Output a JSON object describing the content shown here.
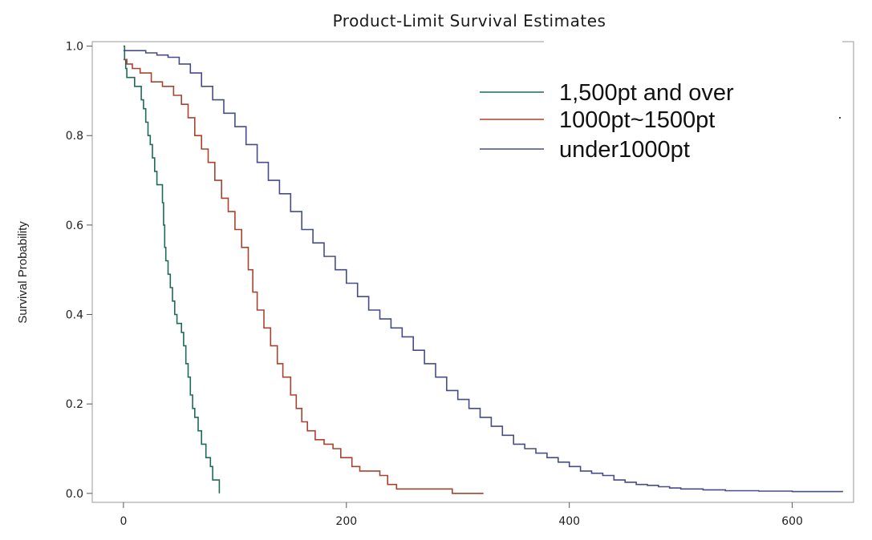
{
  "chart_data": {
    "type": "line",
    "step": true,
    "title": "Product-Limit Survival Estimates",
    "xlabel": "",
    "ylabel": "Survival Probability",
    "xlim": [
      -28,
      655
    ],
    "ylim": [
      -0.02,
      1.01
    ],
    "x_ticks": [
      0,
      200,
      400,
      600
    ],
    "y_ticks": [
      0.0,
      0.2,
      0.4,
      0.6,
      0.8,
      1.0
    ],
    "x_tick_labels": [
      "0",
      "200",
      "400",
      "600"
    ],
    "y_tick_labels": [
      "0.0",
      "0.2",
      "0.4",
      "0.6",
      "0.8",
      "1.0"
    ],
    "grid": false,
    "legend_position": "top-right",
    "series": [
      {
        "name": "1,500pt and over",
        "color": "#1e6b5a",
        "points": [
          [
            0,
            1.0
          ],
          [
            1,
            0.97
          ],
          [
            2,
            0.95
          ],
          [
            3,
            0.93
          ],
          [
            9,
            0.93
          ],
          [
            10,
            0.91
          ],
          [
            15,
            0.91
          ],
          [
            16,
            0.88
          ],
          [
            18,
            0.86
          ],
          [
            20,
            0.83
          ],
          [
            22,
            0.8
          ],
          [
            24,
            0.78
          ],
          [
            26,
            0.75
          ],
          [
            28,
            0.72
          ],
          [
            30,
            0.69
          ],
          [
            34,
            0.69
          ],
          [
            35,
            0.65
          ],
          [
            36,
            0.6
          ],
          [
            37,
            0.55
          ],
          [
            38,
            0.52
          ],
          [
            40,
            0.49
          ],
          [
            42,
            0.46
          ],
          [
            44,
            0.43
          ],
          [
            46,
            0.4
          ],
          [
            48,
            0.38
          ],
          [
            52,
            0.36
          ],
          [
            54,
            0.33
          ],
          [
            56,
            0.29
          ],
          [
            58,
            0.26
          ],
          [
            60,
            0.22
          ],
          [
            62,
            0.19
          ],
          [
            64,
            0.17
          ],
          [
            67,
            0.14
          ],
          [
            70,
            0.11
          ],
          [
            74,
            0.08
          ],
          [
            78,
            0.06
          ],
          [
            80,
            0.03
          ],
          [
            85,
            0.03
          ],
          [
            86,
            0.0
          ]
        ]
      },
      {
        "name": "1000pt~1500pt",
        "color": "#a8432f",
        "points": [
          [
            0,
            0.97
          ],
          [
            3,
            0.96
          ],
          [
            8,
            0.95
          ],
          [
            15,
            0.94
          ],
          [
            25,
            0.92
          ],
          [
            35,
            0.91
          ],
          [
            45,
            0.89
          ],
          [
            52,
            0.87
          ],
          [
            58,
            0.84
          ],
          [
            64,
            0.8
          ],
          [
            70,
            0.77
          ],
          [
            76,
            0.74
          ],
          [
            82,
            0.7
          ],
          [
            88,
            0.66
          ],
          [
            94,
            0.63
          ],
          [
            100,
            0.59
          ],
          [
            106,
            0.55
          ],
          [
            112,
            0.5
          ],
          [
            116,
            0.45
          ],
          [
            120,
            0.41
          ],
          [
            126,
            0.37
          ],
          [
            132,
            0.33
          ],
          [
            138,
            0.29
          ],
          [
            143,
            0.26
          ],
          [
            150,
            0.22
          ],
          [
            155,
            0.19
          ],
          [
            160,
            0.16
          ],
          [
            165,
            0.14
          ],
          [
            172,
            0.12
          ],
          [
            180,
            0.11
          ],
          [
            188,
            0.1
          ],
          [
            195,
            0.08
          ],
          [
            205,
            0.06
          ],
          [
            212,
            0.05
          ],
          [
            220,
            0.05
          ],
          [
            230,
            0.04
          ],
          [
            237,
            0.02
          ],
          [
            245,
            0.01
          ],
          [
            270,
            0.01
          ],
          [
            285,
            0.01
          ],
          [
            295,
            0.0
          ],
          [
            323,
            0.0
          ]
        ]
      },
      {
        "name": "under1000pt",
        "color": "#464c88",
        "points": [
          [
            0,
            0.99
          ],
          [
            10,
            0.99
          ],
          [
            20,
            0.985
          ],
          [
            30,
            0.98
          ],
          [
            40,
            0.975
          ],
          [
            50,
            0.96
          ],
          [
            60,
            0.94
          ],
          [
            70,
            0.91
          ],
          [
            80,
            0.88
          ],
          [
            90,
            0.85
          ],
          [
            100,
            0.82
          ],
          [
            110,
            0.78
          ],
          [
            120,
            0.74
          ],
          [
            130,
            0.7
          ],
          [
            140,
            0.67
          ],
          [
            150,
            0.63
          ],
          [
            160,
            0.59
          ],
          [
            170,
            0.56
          ],
          [
            180,
            0.53
          ],
          [
            190,
            0.5
          ],
          [
            200,
            0.47
          ],
          [
            210,
            0.44
          ],
          [
            220,
            0.41
          ],
          [
            230,
            0.39
          ],
          [
            240,
            0.37
          ],
          [
            250,
            0.35
          ],
          [
            260,
            0.32
          ],
          [
            270,
            0.29
          ],
          [
            280,
            0.26
          ],
          [
            290,
            0.23
          ],
          [
            300,
            0.21
          ],
          [
            310,
            0.19
          ],
          [
            320,
            0.17
          ],
          [
            330,
            0.15
          ],
          [
            340,
            0.13
          ],
          [
            350,
            0.11
          ],
          [
            360,
            0.1
          ],
          [
            370,
            0.09
          ],
          [
            380,
            0.08
          ],
          [
            390,
            0.07
          ],
          [
            400,
            0.06
          ],
          [
            410,
            0.05
          ],
          [
            420,
            0.045
          ],
          [
            430,
            0.04
          ],
          [
            440,
            0.03
          ],
          [
            450,
            0.025
          ],
          [
            460,
            0.02
          ],
          [
            470,
            0.018
          ],
          [
            480,
            0.015
          ],
          [
            490,
            0.012
          ],
          [
            500,
            0.01
          ],
          [
            520,
            0.008
          ],
          [
            540,
            0.006
          ],
          [
            570,
            0.005
          ],
          [
            600,
            0.004
          ],
          [
            645,
            0.003
          ]
        ]
      }
    ]
  }
}
